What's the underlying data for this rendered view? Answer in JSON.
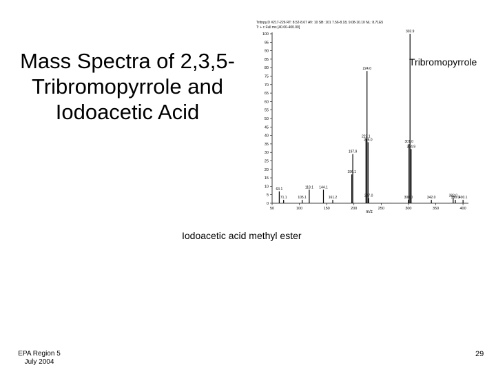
{
  "slide": {
    "title_lines": [
      "Mass Spectra of 2,3,5-",
      "Tribromopyrrole and",
      "Iodoacetic Acid"
    ],
    "right_caption": "Tribromopyrrole",
    "bottom_caption": "Iodoacetic acid methyl ester",
    "footer_lines": [
      "EPA Region 5",
      "July 2004"
    ],
    "page_number": "29"
  },
  "chart_data": {
    "type": "stick",
    "header": [
      "Tribrpy.D #217-226  RT: 8.52-8.67  AV: 10  SB: 101 7.56-8.18, 9.08-10.10  NL: 8.71E5",
      "T: + c Full ms [40.00-400.00]"
    ],
    "x_label": "m/z",
    "x": [
      63.1,
      71.1,
      105.1,
      118.1,
      144.1,
      161.2,
      196.1,
      197.9,
      222.1,
      224.0,
      226.0,
      227.0,
      300.0,
      301.0,
      302.9,
      304.9,
      342.0,
      382.0,
      386.0,
      400.1
    ],
    "x_labels": [
      "63.1",
      "71.1",
      "105.1",
      "118.1",
      "144.1",
      "161.2",
      "196.1",
      "197.9",
      "222.1",
      "224.0",
      "226.0",
      "227.0",
      "300.0",
      "301.0",
      "302.9",
      "304.9",
      "342.0",
      "382.0",
      "386.0",
      "400.1"
    ],
    "values": [
      7,
      2,
      2,
      8,
      8,
      2,
      17,
      29,
      38,
      78,
      36,
      3,
      2,
      35,
      100,
      32,
      2,
      3,
      2,
      2
    ],
    "color": "#000000",
    "xlim": [
      50,
      410
    ],
    "xticks": [
      50,
      100,
      150,
      200,
      250,
      300,
      350,
      400
    ],
    "ylim": [
      0,
      100
    ],
    "yticks": [
      0,
      5,
      10,
      15,
      20,
      25,
      30,
      35,
      40,
      45,
      50,
      55,
      60,
      65,
      70,
      75,
      80,
      85,
      90,
      95,
      100
    ]
  }
}
